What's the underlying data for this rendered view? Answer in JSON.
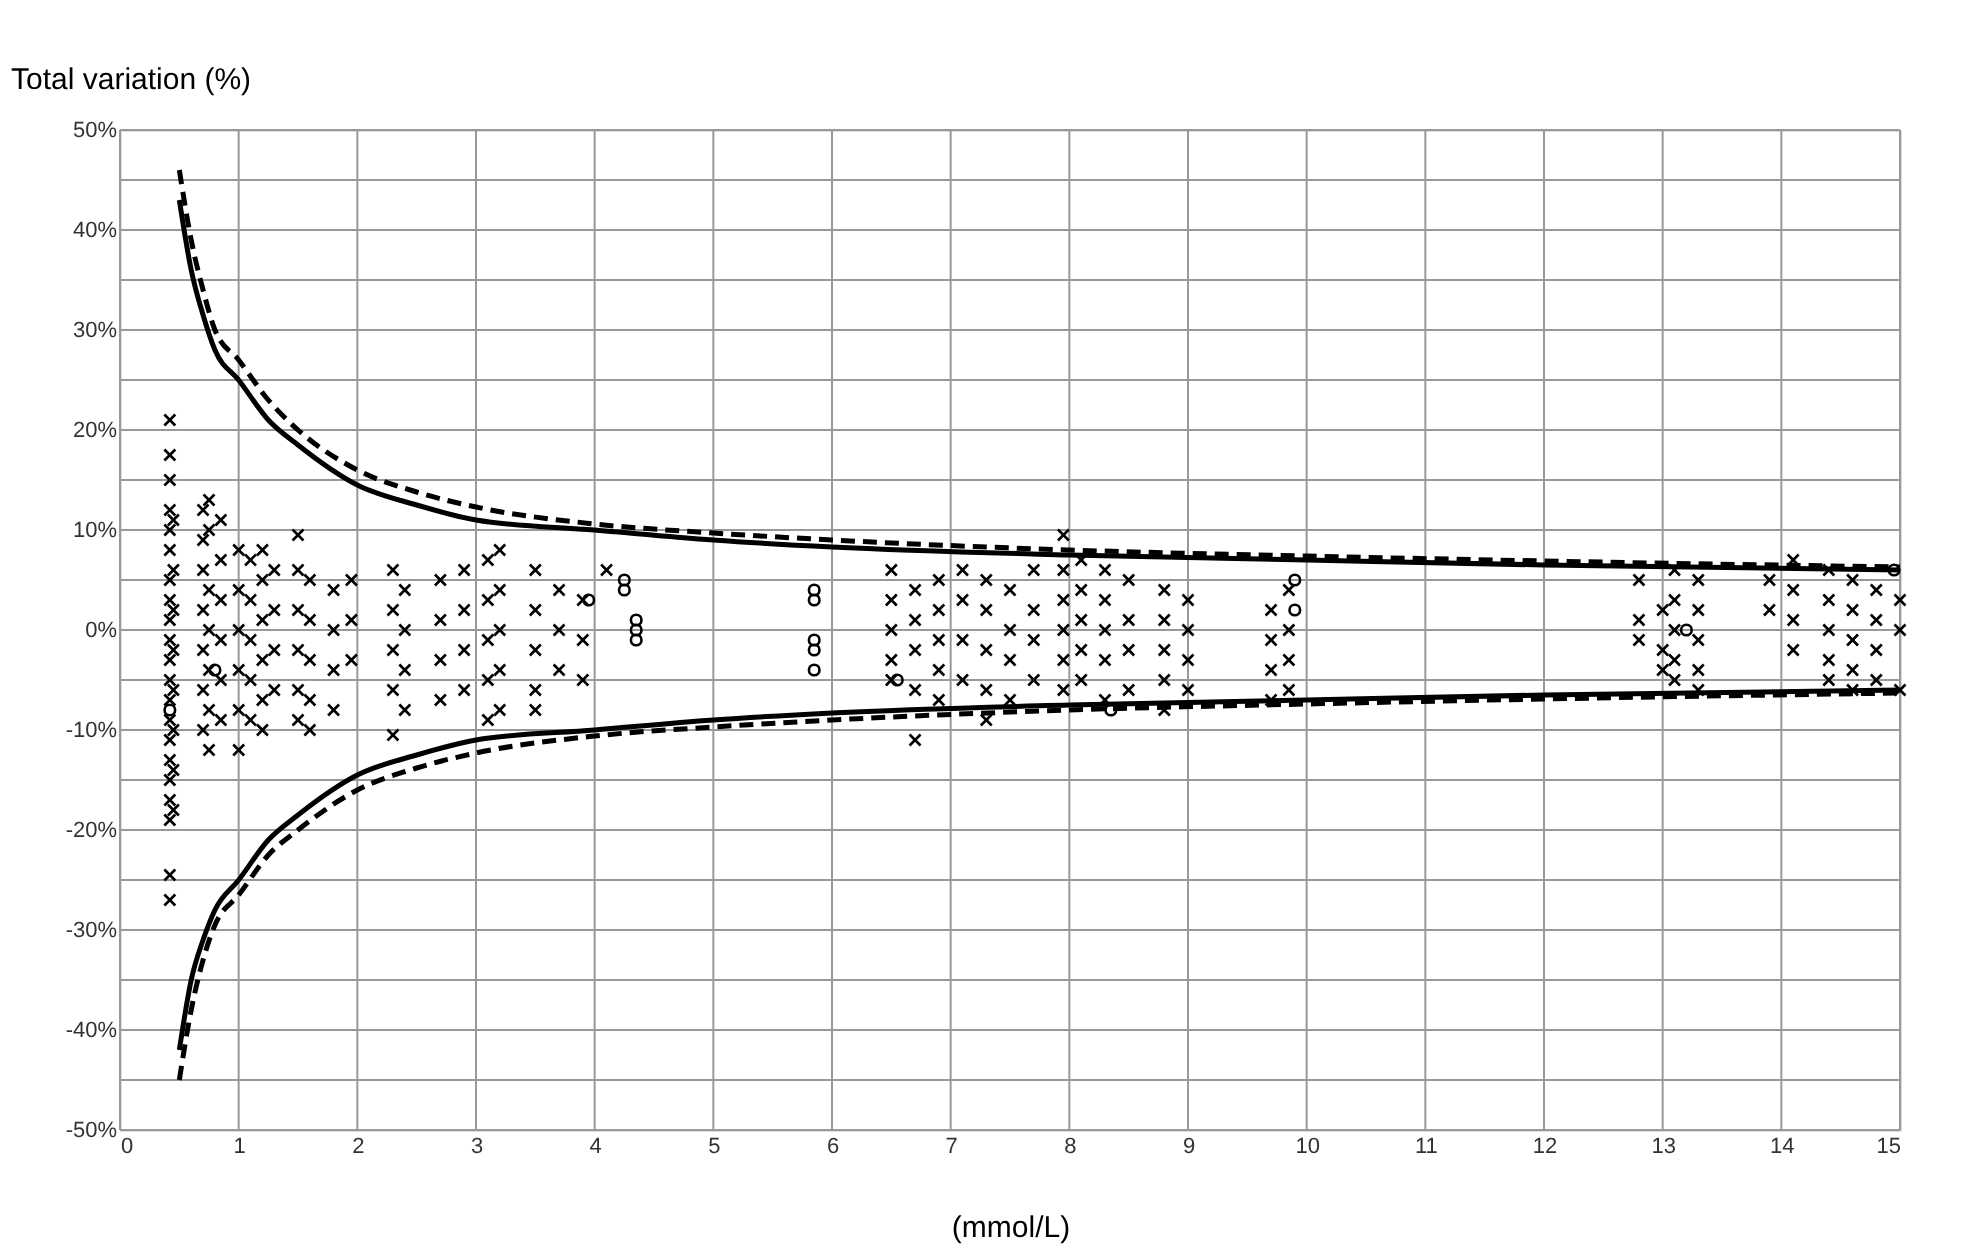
{
  "chart_data": {
    "type": "scatter",
    "ylabel": "Total variation (%)",
    "xlabel": "(mmol/L)",
    "xlim": [
      0,
      15
    ],
    "xticks": [
      0,
      1,
      2,
      3,
      4,
      5,
      6,
      7,
      8,
      9,
      10,
      11,
      12,
      13,
      14,
      15
    ],
    "ylim": [
      -50,
      50
    ],
    "yticks": [
      {
        "value": -50,
        "label": "-50%"
      },
      {
        "value": -45,
        "label": null
      },
      {
        "value": -40,
        "label": "-40%"
      },
      {
        "value": -35,
        "label": null
      },
      {
        "value": -30,
        "label": "-30%"
      },
      {
        "value": -25,
        "label": null
      },
      {
        "value": -20,
        "label": "-20%"
      },
      {
        "value": -15,
        "label": null
      },
      {
        "value": -10,
        "label": "-10%"
      },
      {
        "value": -5,
        "label": null
      },
      {
        "value": 0,
        "label": "0%"
      },
      {
        "value": 5,
        "label": null
      },
      {
        "value": 10,
        "label": "10%"
      },
      {
        "value": 15,
        "label": null
      },
      {
        "value": 20,
        "label": "20%"
      },
      {
        "value": 25,
        "label": null
      },
      {
        "value": 30,
        "label": "30%"
      },
      {
        "value": 35,
        "label": null
      },
      {
        "value": 40,
        "label": "40%"
      },
      {
        "value": 45,
        "label": null
      },
      {
        "value": 50,
        "label": "50%"
      }
    ],
    "grid": true,
    "series": [
      {
        "type": "scatter",
        "marker": "cross",
        "color": "#000000",
        "x": [
          0.42,
          0.42,
          0.42,
          0.42,
          0.42,
          0.42,
          0.42,
          0.42,
          0.42,
          0.42,
          0.42,
          0.42,
          0.42,
          0.42,
          0.42,
          0.42,
          0.42,
          0.42,
          0.42,
          0.42,
          0.42,
          0.45,
          0.45,
          0.45,
          0.45,
          0.45,
          0.45,
          0.45,
          0.45,
          0.7,
          0.7,
          0.7,
          0.7,
          0.7,
          0.7,
          0.7,
          0.75,
          0.75,
          0.75,
          0.75,
          0.75,
          0.75,
          0.75,
          0.85,
          0.85,
          0.85,
          0.85,
          0.85,
          0.85,
          1.0,
          1.0,
          1.0,
          1.0,
          1.0,
          1.0,
          1.1,
          1.1,
          1.1,
          1.1,
          1.1,
          1.2,
          1.2,
          1.2,
          1.2,
          1.2,
          1.2,
          1.3,
          1.3,
          1.3,
          1.3,
          1.5,
          1.5,
          1.5,
          1.5,
          1.5,
          1.5,
          1.6,
          1.6,
          1.6,
          1.6,
          1.6,
          1.8,
          1.8,
          1.8,
          1.8,
          1.95,
          1.95,
          1.95,
          2.3,
          2.3,
          2.3,
          2.3,
          2.3,
          2.4,
          2.4,
          2.4,
          2.4,
          2.7,
          2.7,
          2.7,
          2.7,
          2.9,
          2.9,
          2.9,
          2.9,
          3.1,
          3.1,
          3.1,
          3.1,
          3.1,
          3.2,
          3.2,
          3.2,
          3.2,
          3.2,
          3.5,
          3.5,
          3.5,
          3.5,
          3.5,
          3.7,
          3.7,
          3.7,
          3.9,
          3.9,
          3.9,
          4.1,
          6.5,
          6.5,
          6.5,
          6.5,
          6.5,
          6.7,
          6.7,
          6.7,
          6.7,
          6.7,
          6.9,
          6.9,
          6.9,
          6.9,
          6.9,
          7.1,
          7.1,
          7.1,
          7.1,
          7.3,
          7.3,
          7.3,
          7.3,
          7.3,
          7.5,
          7.5,
          7.5,
          7.5,
          7.7,
          7.7,
          7.7,
          7.7,
          7.95,
          7.95,
          7.95,
          7.95,
          7.95,
          7.95,
          8.1,
          8.1,
          8.1,
          8.1,
          8.1,
          8.3,
          8.3,
          8.3,
          8.3,
          8.3,
          8.5,
          8.5,
          8.5,
          8.5,
          8.8,
          8.8,
          8.8,
          8.8,
          8.8,
          9.0,
          9.0,
          9.0,
          9.0,
          9.7,
          9.7,
          9.7,
          9.7,
          9.85,
          9.85,
          9.85,
          9.85,
          12.8,
          12.8,
          12.8,
          13.0,
          13.0,
          13.0,
          13.1,
          13.1,
          13.1,
          13.1,
          13.1,
          13.3,
          13.3,
          13.3,
          13.3,
          13.3,
          13.9,
          13.9,
          14.1,
          14.1,
          14.1,
          14.1,
          14.4,
          14.4,
          14.4,
          14.4,
          14.4,
          14.6,
          14.6,
          14.6,
          14.6,
          14.6,
          14.8,
          14.8,
          14.8,
          14.8,
          15.0,
          15.0,
          15.0
        ],
        "values": [
          21,
          17.5,
          15,
          12,
          10,
          8,
          5,
          3,
          1,
          -1,
          -3,
          -5,
          -7,
          -9,
          -11,
          -13,
          -15,
          -17,
          -19,
          -24.5,
          -27,
          11,
          6,
          2,
          -2,
          -6,
          -10,
          -14,
          -18,
          12,
          9,
          6,
          2,
          -2,
          -6,
          -10,
          13,
          10,
          4,
          0,
          -4,
          -8,
          -12,
          11,
          7,
          3,
          -1,
          -5,
          -9,
          8,
          4,
          0,
          -4,
          -8,
          -12,
          7,
          3,
          -1,
          -5,
          -9,
          8,
          5,
          1,
          -3,
          -7,
          -10,
          6,
          2,
          -2,
          -6,
          9.5,
          6,
          2,
          -2,
          -6,
          -9,
          5,
          1,
          -3,
          -7,
          -10,
          4,
          0,
          -4,
          -8,
          5,
          1,
          -3,
          6,
          2,
          -2,
          -6,
          -10.5,
          4,
          0,
          -4,
          -8,
          5,
          1,
          -3,
          -7,
          6,
          2,
          -2,
          -6,
          7,
          3,
          -1,
          -5,
          -9,
          8,
          4,
          0,
          -4,
          -8,
          6,
          2,
          -2,
          -6,
          -8,
          4,
          0,
          -4,
          3,
          -1,
          -5,
          6,
          6,
          3,
          0,
          -3,
          -5,
          4,
          1,
          -2,
          -6,
          -11,
          5,
          2,
          -1,
          -4,
          -7,
          6,
          3,
          -1,
          -5,
          5,
          2,
          -2,
          -6,
          -9,
          4,
          0,
          -3,
          -7,
          6,
          2,
          -1,
          -5,
          9.5,
          6,
          3,
          0,
          -3,
          -6,
          7,
          4,
          1,
          -2,
          -5,
          6,
          3,
          0,
          -3,
          -7,
          5,
          1,
          -2,
          -6,
          4,
          1,
          -2,
          -5,
          -8,
          3,
          0,
          -3,
          -6,
          2,
          -1,
          -4,
          -7,
          4,
          0,
          -3,
          -6,
          5,
          1,
          -1,
          2,
          -2,
          -4,
          6,
          3,
          0,
          -3,
          -5,
          5,
          2,
          -1,
          -4,
          -6,
          5,
          2,
          7,
          4,
          1,
          -2,
          6,
          3,
          0,
          -3,
          -5,
          5,
          2,
          -1,
          -4,
          -6,
          4,
          1,
          -2,
          -5,
          3,
          0,
          -6
        ]
      },
      {
        "type": "scatter",
        "marker": "circle",
        "color": "#000000",
        "x": [
          0.42,
          0.8,
          3.95,
          4.25,
          4.25,
          4.35,
          4.35,
          4.35,
          5.85,
          5.85,
          5.85,
          5.85,
          5.85,
          6.55,
          8.35,
          9.9,
          9.9,
          13.2,
          14.95
        ],
        "values": [
          -8,
          -4,
          3,
          5,
          4,
          1,
          0,
          -1,
          4,
          3,
          -1,
          -2,
          -4,
          -5,
          -8,
          5,
          2,
          0,
          6
        ]
      },
      {
        "type": "line",
        "line_style": "solid",
        "marker": "none",
        "color": "#000000",
        "x": [
          0.5,
          0.6,
          0.7,
          0.8,
          1,
          1.25,
          1.5,
          2,
          2.5,
          3,
          4,
          5,
          6,
          8,
          10,
          12,
          15
        ],
        "values": [
          43,
          36,
          31.5,
          28,
          25,
          21,
          18.5,
          14.5,
          12.5,
          11,
          10,
          9,
          8.3,
          7.5,
          7,
          6.5,
          6
        ]
      },
      {
        "type": "line",
        "line_style": "solid",
        "marker": "none",
        "color": "#000000",
        "x": [
          0.5,
          0.6,
          0.7,
          0.8,
          1,
          1.25,
          1.5,
          2,
          2.5,
          3,
          4,
          5,
          6,
          8,
          10,
          12,
          15
        ],
        "values": [
          -42,
          -35,
          -31,
          -28,
          -25,
          -21,
          -18.5,
          -14.5,
          -12.5,
          -11,
          -10,
          -9,
          -8.3,
          -7.5,
          -7,
          -6.5,
          -6
        ]
      },
      {
        "type": "line",
        "line_style": "dashed",
        "marker": "none",
        "color": "#000000",
        "x": [
          0.5,
          0.6,
          0.7,
          0.8,
          1,
          1.25,
          1.5,
          2,
          2.5,
          3,
          4,
          5,
          6,
          8,
          10,
          12,
          15
        ],
        "values": [
          46,
          39,
          34,
          30,
          27,
          23,
          20,
          16,
          13.8,
          12.3,
          10.6,
          9.7,
          9,
          8,
          7.4,
          6.9,
          6.3
        ]
      },
      {
        "type": "line",
        "line_style": "dashed",
        "marker": "none",
        "color": "#000000",
        "x": [
          0.5,
          0.6,
          0.7,
          0.8,
          1,
          1.25,
          1.5,
          2,
          2.5,
          3,
          4,
          5,
          6,
          8,
          10,
          12,
          15
        ],
        "values": [
          -45,
          -38,
          -33,
          -29.5,
          -26.5,
          -22.5,
          -20,
          -16,
          -13.8,
          -12.3,
          -10.6,
          -9.7,
          -9,
          -8,
          -7.4,
          -6.9,
          -6.3
        ]
      }
    ]
  }
}
